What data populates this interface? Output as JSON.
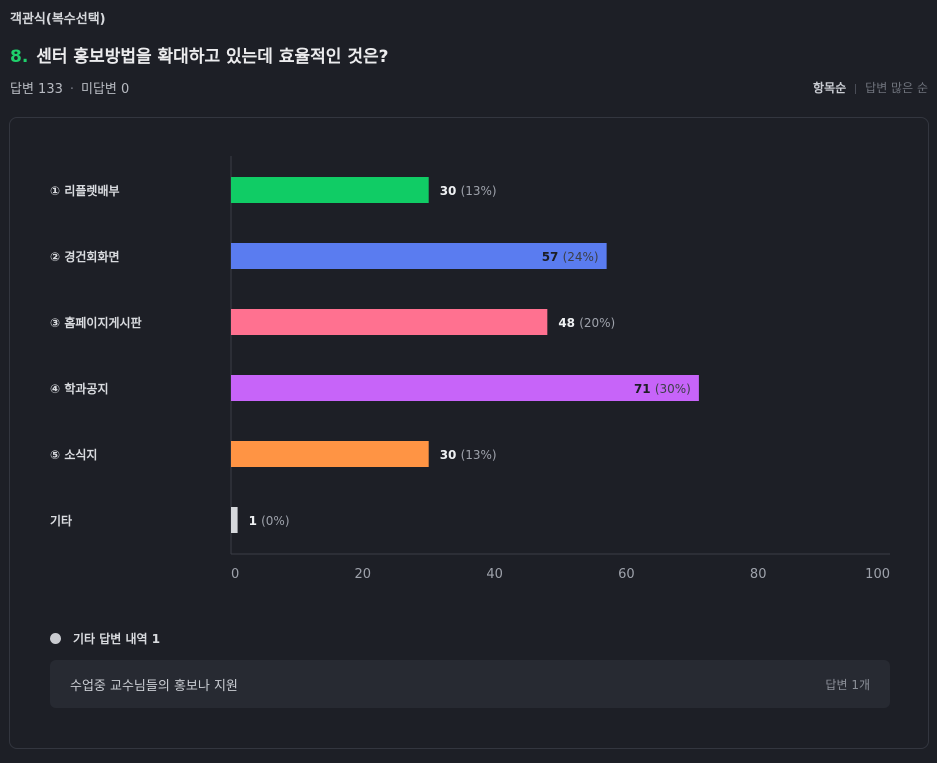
{
  "question": {
    "type_label": "객관식(복수선택)",
    "number": "8.",
    "title": "센터 홍보방법을 확대하고 있는데 효율적인 것은?",
    "answered": "답변 133",
    "unanswered": "미답변 0"
  },
  "sort": {
    "active": "항목순",
    "inactive": "답변 많은 순"
  },
  "chart_data": {
    "type": "bar",
    "orientation": "horizontal",
    "categories": [
      "① 리플렛배부",
      "② 경건회화면",
      "③ 홈페이지게시판",
      "④ 학과공지",
      "⑤ 소식지",
      "기타"
    ],
    "values": [
      30,
      57,
      48,
      71,
      30,
      1
    ],
    "percent_labels": [
      "(13%)",
      "(24%)",
      "(20%)",
      "(30%)",
      "(13%)",
      "(0%)"
    ],
    "colors": [
      "#10cc65",
      "#5a7cf0",
      "#ff7190",
      "#c764f9",
      "#ff9444",
      "#d6d8dc"
    ],
    "xlim": [
      0,
      100
    ],
    "xticks": [
      0,
      20,
      40,
      60,
      80,
      100
    ],
    "grid": false,
    "legend": "none"
  },
  "etc": {
    "header": "기타 답변 내역 1",
    "items": [
      {
        "text": "수업중 교수님들의 홍보나 지원",
        "count": "답변 1개"
      }
    ]
  }
}
